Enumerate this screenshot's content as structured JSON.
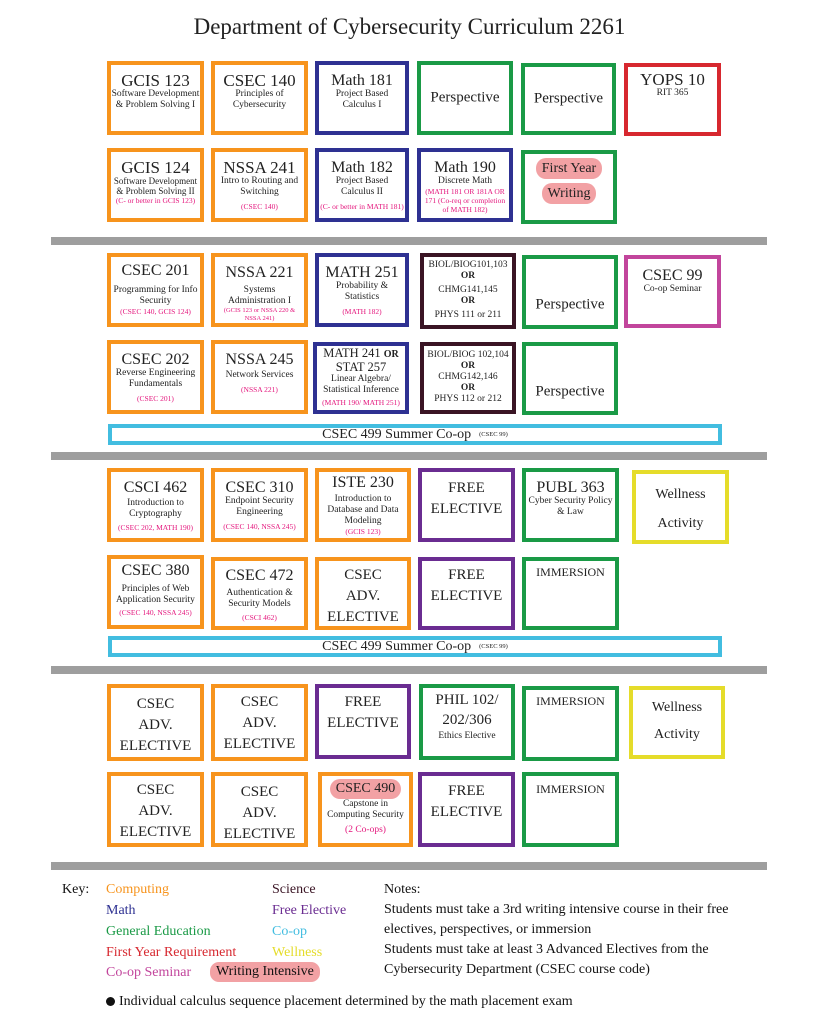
{
  "title": "Department of  Cybersecurity Curriculum 2261",
  "courses": {
    "gcis123": {
      "code": "GCIS 123",
      "name": "Software Development & Problem Solving I"
    },
    "csec140": {
      "code": "CSEC 140",
      "name": "Principles of Cybersecurity"
    },
    "math181": {
      "code": "Math 181",
      "name": "Project Based Calculus I"
    },
    "persp1": {
      "code": "Perspective"
    },
    "persp2": {
      "code": "Perspective"
    },
    "yops10": {
      "code": "YOPS 10",
      "name": "RIT 365"
    },
    "gcis124": {
      "code": "GCIS 124",
      "name": "Software Development & Problem Solving II",
      "pre": "(C- or better in GCIS 123)"
    },
    "nssa241": {
      "code": "NSSA 241",
      "name": "Intro to Routing and Switching",
      "pre": "(CSEC 140)"
    },
    "math182": {
      "code": "Math 182",
      "name": "Project Based Calculus II",
      "pre": "(C- or better in MATH 181)"
    },
    "math190": {
      "code": "Math 190",
      "name": "Discrete Math",
      "pre": "(MATH 181 OR 181A OR 171 (Co-req or completion of MATH 182)"
    },
    "fyw": {
      "line1": "First Year",
      "line2": "Writing"
    },
    "csec201": {
      "code": "CSEC 201",
      "name": "Programming for Info Security",
      "pre": "(CSEC 140, GCIS 124)"
    },
    "nssa221": {
      "code": "NSSA 221",
      "name": "Systems Administration I",
      "pre": "(GCIS 123 or NSSA 220 & NSSA 241)"
    },
    "math251": {
      "code": "MATH 251",
      "name": "Probability & Statistics",
      "pre": "(MATH 182)"
    },
    "sci1": {
      "l1": "BIOL/BIOG101,103",
      "or1": "OR",
      "l2": "CHMG141,145",
      "or2": "OR",
      "l3": "PHYS 111 or 211"
    },
    "persp3": {
      "code": "Perspective"
    },
    "csec99": {
      "code": "CSEC 99",
      "name": "Co-op Seminar"
    },
    "csec202": {
      "code": "CSEC 202",
      "name": "Reverse Engineering Fundamentals",
      "pre": "(CSEC 201)"
    },
    "nssa245": {
      "code": "NSSA 245",
      "name": "Network Services",
      "pre": "(NSSA 221)"
    },
    "math241": {
      "code1": "MATH 241",
      "or": "OR",
      "code2": "STAT 257",
      "name": "Linear Algebra/ Statistical Inference",
      "pre": "(MATH 190/ MATH 251)"
    },
    "sci2": {
      "l1": "BIOL/BIOG 102,104",
      "or1": "OR",
      "l2": "CHMG142,146",
      "or2": "OR",
      "l3": "PHYS 112 or 212"
    },
    "persp4": {
      "code": "Perspective"
    },
    "coop1": {
      "label": "CSEC 499 Summer Co-op",
      "pre": "(CSEC 99)"
    },
    "csci462": {
      "code": "CSCI 462",
      "name": "Introduction to Cryptography",
      "pre": "(CSEC 202, MATH 190)"
    },
    "csec310": {
      "code": "CSEC 310",
      "name": "Endpoint Security Engineering",
      "pre": "(CSEC 140, NSSA 245)"
    },
    "iste230": {
      "code": "ISTE 230",
      "name": "Introduction to Database and Data Modeling",
      "pre": "(GCIS 123)"
    },
    "free1": {
      "l1": "FREE",
      "l2": "ELECTIVE"
    },
    "publ363": {
      "code": "PUBL 363",
      "name": "Cyber Security Policy & Law"
    },
    "well1": {
      "l1": "Wellness",
      "l2": "Activity"
    },
    "csec380": {
      "code": "CSEC 380",
      "name": "Principles of Web Application Security",
      "pre": "(CSEC 140, NSSA 245)"
    },
    "csec472": {
      "code": "CSEC 472",
      "name": "Authentication & Security Models",
      "pre": "(CSCI 462)"
    },
    "adv1": {
      "l1": "CSEC",
      "l2": "ADV.",
      "l3": "ELECTIVE"
    },
    "free2": {
      "l1": "FREE",
      "l2": "ELECTIVE"
    },
    "imm1": {
      "label": "IMMERSION"
    },
    "coop2": {
      "label": "CSEC 499 Summer Co-op",
      "pre": "(CSEC 99)"
    },
    "adv2": {
      "l1": "CSEC",
      "l2": "ADV.",
      "l3": "ELECTIVE"
    },
    "adv3": {
      "l1": "CSEC",
      "l2": "ADV.",
      "l3": "ELECTIVE"
    },
    "free3": {
      "l1": "FREE",
      "l2": "ELECTIVE"
    },
    "phil": {
      "l1": "PHIL 102/",
      "l2": "202/306",
      "name": "Ethics Elective"
    },
    "imm2": {
      "label": "IMMERSION"
    },
    "well2": {
      "l1": "Wellness",
      "l2": "Activity"
    },
    "adv4": {
      "l1": "CSEC",
      "l2": "ADV.",
      "l3": "ELECTIVE"
    },
    "adv5": {
      "l1": "CSEC",
      "l2": "ADV.",
      "l3": "ELECTIVE"
    },
    "csec490": {
      "code": "CSEC 490",
      "name": "Capstone in Computing Security",
      "pre": "(2 Co-ops)"
    },
    "free4": {
      "l1": "FREE",
      "l2": "ELECTIVE"
    },
    "imm3": {
      "label": "IMMERSION"
    }
  },
  "key": {
    "label": "Key:",
    "computing": "Computing",
    "math": "Math",
    "gened": "General Education",
    "fyr": "First Year Requirement",
    "coopsem": "Co-op Seminar",
    "writing": "Writing Intensive",
    "science": "Science",
    "free": "Free Elective",
    "coop": "Co-op",
    "wellness": "Wellness"
  },
  "notes": {
    "heading": "Notes:",
    "n1": "Students must take a 3rd writing intensive course in their free electives, perspectives, or immersion",
    "n2": "Students must take at least 3 Advanced Electives from the Cybersecurity Department (CSEC course code)"
  },
  "footnote": "Individual calculus sequence placement determined by the math placement exam",
  "colors": {
    "computing": "#F7941D",
    "math": "#2E3192",
    "gened": "#1A9A46",
    "fyr": "#D7282F",
    "coopsem": "#C2459C",
    "science": "#3A1424",
    "free": "#6A2C91",
    "coop": "#42BDE0",
    "wellness": "#E5DC2A",
    "writing": "#F2A1A4"
  }
}
